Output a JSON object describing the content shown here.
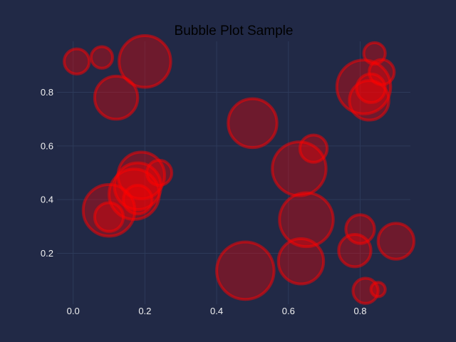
{
  "chart_data": {
    "type": "scatter",
    "title": "Bubble Plot Sample",
    "xlabel": "",
    "ylabel": "",
    "xlim": [
      -0.045,
      0.94
    ],
    "ylim": [
      0.01,
      0.99
    ],
    "x_ticks": [
      "0.0",
      "0.2",
      "0.4",
      "0.6",
      "0.8"
    ],
    "y_ticks": [
      "0.2",
      "0.4",
      "0.6",
      "0.8"
    ],
    "grid": true,
    "colors": {
      "background": "#212946",
      "grid": "#2d3a5a",
      "bubble_fill": "#ff0000",
      "bubble_edge": "#ff0000",
      "title": "#000000",
      "ticks": "#f2f2f2"
    },
    "points": [
      {
        "x": 0.01,
        "y": 0.915,
        "size": 0.035
      },
      {
        "x": 0.08,
        "y": 0.93,
        "size": 0.03
      },
      {
        "x": 0.2,
        "y": 0.915,
        "size": 0.072
      },
      {
        "x": 0.12,
        "y": 0.78,
        "size": 0.06
      },
      {
        "x": 0.5,
        "y": 0.685,
        "size": 0.068
      },
      {
        "x": 0.84,
        "y": 0.945,
        "size": 0.03
      },
      {
        "x": 0.86,
        "y": 0.875,
        "size": 0.035
      },
      {
        "x": 0.81,
        "y": 0.82,
        "size": 0.075
      },
      {
        "x": 0.83,
        "y": 0.815,
        "size": 0.04
      },
      {
        "x": 0.825,
        "y": 0.77,
        "size": 0.055
      },
      {
        "x": 0.67,
        "y": 0.59,
        "size": 0.038
      },
      {
        "x": 0.63,
        "y": 0.515,
        "size": 0.075
      },
      {
        "x": 0.24,
        "y": 0.5,
        "size": 0.035
      },
      {
        "x": 0.19,
        "y": 0.49,
        "size": 0.065
      },
      {
        "x": 0.18,
        "y": 0.45,
        "size": 0.065
      },
      {
        "x": 0.17,
        "y": 0.42,
        "size": 0.07
      },
      {
        "x": 0.18,
        "y": 0.4,
        "size": 0.04
      },
      {
        "x": 0.1,
        "y": 0.36,
        "size": 0.072
      },
      {
        "x": 0.1,
        "y": 0.335,
        "size": 0.04
      },
      {
        "x": 0.65,
        "y": 0.325,
        "size": 0.075
      },
      {
        "x": 0.8,
        "y": 0.29,
        "size": 0.04
      },
      {
        "x": 0.9,
        "y": 0.245,
        "size": 0.05
      },
      {
        "x": 0.785,
        "y": 0.21,
        "size": 0.045
      },
      {
        "x": 0.635,
        "y": 0.17,
        "size": 0.063
      },
      {
        "x": 0.48,
        "y": 0.135,
        "size": 0.08
      },
      {
        "x": 0.815,
        "y": 0.06,
        "size": 0.035
      },
      {
        "x": 0.85,
        "y": 0.065,
        "size": 0.02
      }
    ]
  }
}
